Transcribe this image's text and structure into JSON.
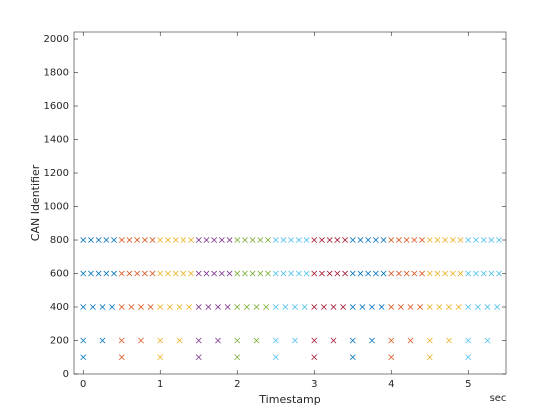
{
  "chart_data": {
    "type": "scatter",
    "xlabel": "Timestamp",
    "ylabel": "CAN Identifier",
    "x_unit_annotation": "sec",
    "xlim": [
      -0.12,
      5.49
    ],
    "ylim": [
      0,
      2042
    ],
    "xticks": [
      0,
      1,
      2,
      3,
      4,
      5
    ],
    "yticks": [
      0,
      200,
      400,
      600,
      800,
      1000,
      1200,
      1400,
      1600,
      1800,
      2000
    ],
    "grid": false,
    "marker": "x",
    "series": [
      {
        "color": "#0072BD",
        "x": [
          0,
          0.1,
          0.2,
          0.3,
          0.4,
          0,
          0.1,
          0.2,
          0.3,
          0.4,
          0,
          0.125,
          0.25,
          0.375,
          0,
          0.25,
          0
        ],
        "y": [
          800,
          800,
          800,
          800,
          800,
          600,
          600,
          600,
          600,
          600,
          400,
          400,
          400,
          400,
          200,
          200,
          100
        ]
      },
      {
        "color": "#D95319",
        "x": [
          0.5,
          0.6,
          0.7,
          0.8,
          0.9,
          0.5,
          0.6,
          0.7,
          0.8,
          0.9,
          0.5,
          0.625,
          0.75,
          0.875,
          0.5,
          0.75,
          0.5
        ],
        "y": [
          800,
          800,
          800,
          800,
          800,
          600,
          600,
          600,
          600,
          600,
          400,
          400,
          400,
          400,
          200,
          200,
          100
        ]
      },
      {
        "color": "#EDB120",
        "x": [
          1,
          1.1,
          1.2,
          1.3,
          1.4,
          1,
          1.1,
          1.2,
          1.3,
          1.4,
          1,
          1.125,
          1.25,
          1.375,
          1,
          1.25,
          1
        ],
        "y": [
          800,
          800,
          800,
          800,
          800,
          600,
          600,
          600,
          600,
          600,
          400,
          400,
          400,
          400,
          200,
          200,
          100
        ]
      },
      {
        "color": "#7E2F8E",
        "x": [
          1.5,
          1.6,
          1.7,
          1.8,
          1.9,
          1.5,
          1.6,
          1.7,
          1.8,
          1.9,
          1.5,
          1.625,
          1.75,
          1.875,
          1.5,
          1.75,
          1.5
        ],
        "y": [
          800,
          800,
          800,
          800,
          800,
          600,
          600,
          600,
          600,
          600,
          400,
          400,
          400,
          400,
          200,
          200,
          100
        ]
      },
      {
        "color": "#77AC30",
        "x": [
          2,
          2.1,
          2.2,
          2.3,
          2.4,
          2,
          2.1,
          2.2,
          2.3,
          2.4,
          2,
          2.125,
          2.25,
          2.375,
          2,
          2.25,
          2
        ],
        "y": [
          800,
          800,
          800,
          800,
          800,
          600,
          600,
          600,
          600,
          600,
          400,
          400,
          400,
          400,
          200,
          200,
          100
        ]
      },
      {
        "color": "#4DBEEE",
        "x": [
          2.5,
          2.6,
          2.7,
          2.8,
          2.9,
          2.5,
          2.6,
          2.7,
          2.8,
          2.9,
          2.5,
          2.625,
          2.75,
          2.875,
          2.5,
          2.75,
          2.5
        ],
        "y": [
          800,
          800,
          800,
          800,
          800,
          600,
          600,
          600,
          600,
          600,
          400,
          400,
          400,
          400,
          200,
          200,
          100
        ]
      },
      {
        "color": "#A2142F",
        "x": [
          3,
          3.1,
          3.2,
          3.3,
          3.4,
          3,
          3.1,
          3.2,
          3.3,
          3.4,
          3,
          3.125,
          3.25,
          3.375,
          3,
          3.25,
          3
        ],
        "y": [
          800,
          800,
          800,
          800,
          800,
          600,
          600,
          600,
          600,
          600,
          400,
          400,
          400,
          400,
          200,
          200,
          100
        ]
      },
      {
        "color": "#0072BD",
        "x": [
          3.5,
          3.6,
          3.7,
          3.8,
          3.9,
          3.5,
          3.6,
          3.7,
          3.8,
          3.9,
          3.5,
          3.625,
          3.75,
          3.875,
          3.5,
          3.75,
          3.5
        ],
        "y": [
          800,
          800,
          800,
          800,
          800,
          600,
          600,
          600,
          600,
          600,
          400,
          400,
          400,
          400,
          200,
          200,
          100
        ]
      },
      {
        "color": "#D95319",
        "x": [
          4,
          4.1,
          4.2,
          4.3,
          4.4,
          4,
          4.1,
          4.2,
          4.3,
          4.4,
          4,
          4.125,
          4.25,
          4.375,
          4,
          4.25,
          4
        ],
        "y": [
          800,
          800,
          800,
          800,
          800,
          600,
          600,
          600,
          600,
          600,
          400,
          400,
          400,
          400,
          200,
          200,
          100
        ]
      },
      {
        "color": "#EDB120",
        "x": [
          4.5,
          4.6,
          4.7,
          4.8,
          4.9,
          4.5,
          4.6,
          4.7,
          4.8,
          4.9,
          4.5,
          4.625,
          4.75,
          4.875,
          4.5,
          4.75,
          4.5
        ],
        "y": [
          800,
          800,
          800,
          800,
          800,
          600,
          600,
          600,
          600,
          600,
          400,
          400,
          400,
          400,
          200,
          200,
          100
        ]
      },
      {
        "color": "#4DBEEE",
        "x": [
          5,
          5.1,
          5.2,
          5.3,
          5.4,
          5,
          5.1,
          5.2,
          5.3,
          5.4,
          5,
          5.125,
          5.25,
          5.375,
          5,
          5.25,
          5
        ],
        "y": [
          800,
          800,
          800,
          800,
          800,
          600,
          600,
          600,
          600,
          600,
          400,
          400,
          400,
          400,
          200,
          200,
          100
        ]
      }
    ]
  }
}
